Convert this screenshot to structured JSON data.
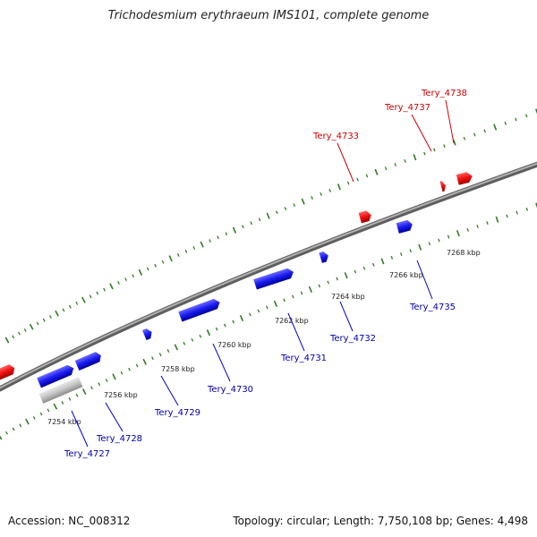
{
  "title": "Trichodesmium erythraeum IMS101, complete genome",
  "footer": {
    "accession": "Accession: NC_008312",
    "summary": "Topology: circular; Length: 7,750,108 bp; Genes: 4,498"
  },
  "colors": {
    "backbone": "#808080",
    "tick": "#2e7d1e",
    "forward_gene": "#e00000",
    "reverse_gene": "#0000e0",
    "pseudo_gene": "#b8b8b8",
    "forward_label": "#cc0000",
    "reverse_label": "#0000aa",
    "scale_label": "#222222"
  },
  "scale": {
    "unit": "kbp",
    "labels": [
      {
        "kbp": 7254,
        "text": "7254 kbp"
      },
      {
        "kbp": 7256,
        "text": "7256 kbp"
      },
      {
        "kbp": 7258,
        "text": "7258 kbp"
      },
      {
        "kbp": 7260,
        "text": "7260 kbp"
      },
      {
        "kbp": 7262,
        "text": "7262 kbp"
      },
      {
        "kbp": 7264,
        "text": "7264 kbp"
      },
      {
        "kbp": 7266,
        "text": "7266 kbp"
      },
      {
        "kbp": 7268,
        "text": "7268 kbp"
      }
    ]
  },
  "reverse_genes": [
    {
      "name": "Tery_4727",
      "label": "Tery_4727"
    },
    {
      "name": "Tery_4728",
      "label": "Tery_4728"
    },
    {
      "name": "Tery_4729",
      "label": "Tery_4729"
    },
    {
      "name": "Tery_4730",
      "label": "Tery_4730"
    },
    {
      "name": "Tery_4731",
      "label": "Tery_4731"
    },
    {
      "name": "Tery_4732",
      "label": "Tery_4732"
    },
    {
      "name": "Tery_4735",
      "label": "Tery_4735"
    }
  ],
  "forward_genes": [
    {
      "name": "Tery_4733",
      "label": "Tery_4733"
    },
    {
      "name": "Tery_4737",
      "label": "Tery_4737"
    },
    {
      "name": "Tery_4738",
      "label": "Tery_4738"
    }
  ]
}
